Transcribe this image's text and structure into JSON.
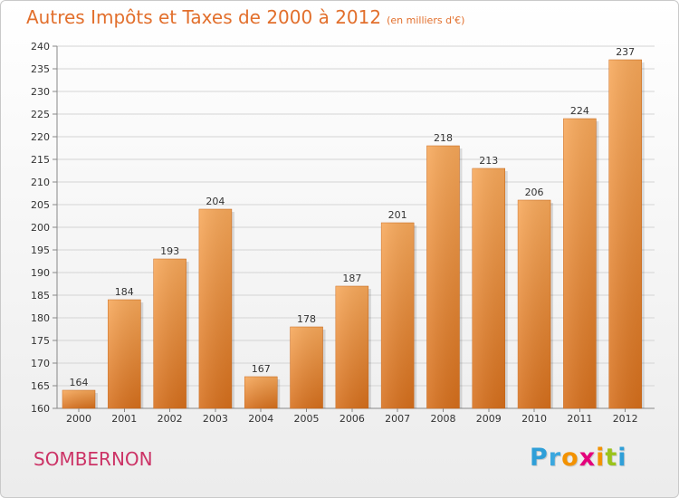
{
  "header": {
    "title": "Autres Impôts et Taxes de 2000 à 2012",
    "subtitle": "(en milliers d'€)"
  },
  "footer": {
    "town": "SOMBERNON",
    "logo_letters": [
      "P",
      "r",
      "o",
      "x",
      "i",
      "t",
      "i"
    ],
    "logo_colors": [
      "#2f9fd8",
      "#3aa7df",
      "#f39200",
      "#e4007c",
      "#f39200",
      "#9bc31c",
      "#2f9fd8"
    ]
  },
  "colors": {
    "accent": "#e26f2c",
    "town": "#cc3366",
    "bar_top": "#f7a85a",
    "bar_bottom": "#d66f1c",
    "grid": "#d4d4d4"
  },
  "chart_data": {
    "type": "bar",
    "title": "Autres Impôts et Taxes de 2000 à 2012",
    "subtitle": "(en milliers d'€)",
    "xlabel": "",
    "ylabel": "",
    "categories": [
      "2000",
      "2001",
      "2002",
      "2003",
      "2004",
      "2005",
      "2006",
      "2007",
      "2008",
      "2009",
      "2010",
      "2011",
      "2012"
    ],
    "values": [
      164,
      184,
      193,
      204,
      167,
      178,
      187,
      201,
      218,
      213,
      206,
      224,
      237
    ],
    "ylim": [
      160,
      240
    ],
    "yticks": [
      160,
      165,
      170,
      175,
      180,
      185,
      190,
      195,
      200,
      205,
      210,
      215,
      220,
      225,
      230,
      235,
      240
    ],
    "grid": true,
    "data_labels": true,
    "legend": "none"
  }
}
